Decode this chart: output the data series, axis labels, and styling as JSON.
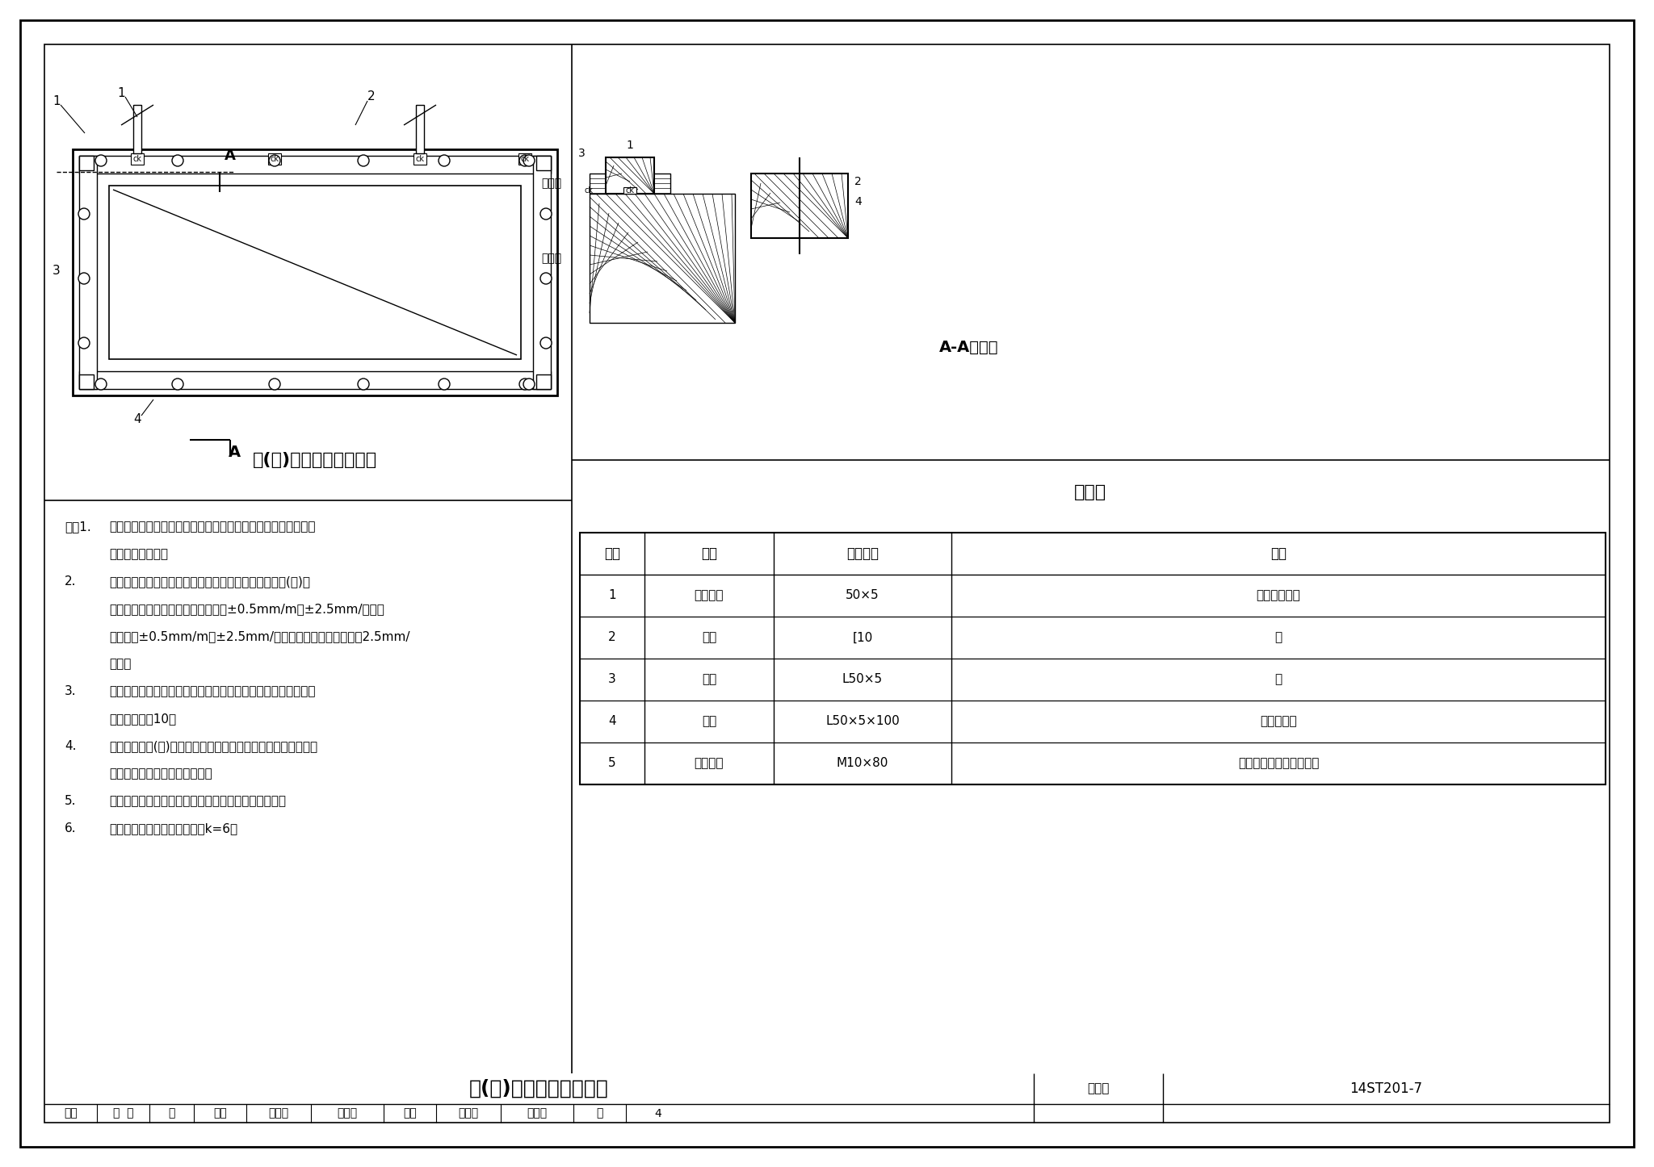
{
  "page_bg": "#ffffff",
  "title_main": "柜(屏)基础预埋件俯视图",
  "title_sub": "柜(屏)基础预埋件安装图",
  "section_title": "A-A剖面图",
  "material_title": "材料表",
  "table_headers": [
    "序号",
    "名称",
    "规格型号",
    "备注"
  ],
  "table_rows": [
    [
      "1",
      "接地扁钢",
      "50×5",
      "引至接地干线"
    ],
    [
      "2",
      "槽钢",
      "[10",
      "－"
    ],
    [
      "3",
      "角钢",
      "L50×5",
      "－"
    ],
    [
      "4",
      "角钢",
      "L50×5×100",
      "固定预埋件"
    ],
    [
      "5",
      "膨胀螺栓",
      "M10×80",
      "含垫圈、弹簧垫圈、螺母"
    ]
  ],
  "notes": [
    [
      "注：1.",
      "基础型钢应有明显的可靠接地，金属框门应以铜软线与接地的金"
    ],
    [
      "",
      "属框架可靠连接。"
    ],
    [
      "2.",
      "基础型钢应按设计图纸或设备尺寸制作，其尺寸应与柜(屏)相"
    ],
    [
      "",
      "符，允许正负偏差应符合：不直度：±0.5mm/m、±2.5mm/全长，"
    ],
    [
      "",
      "不平度：±0.5mm/m、±2.5mm/全长，位置偏差及不平度：2.5mm/"
    ],
    [
      "",
      "全长。"
    ],
    [
      "3.",
      "基础型钢安装后，其顶部标高在产品技术文件中没有要求时，宜"
    ],
    [
      "",
      "高出抹平地面10。"
    ],
    [
      "4.",
      "控制、保护柜(屏)和自动装置盘等与基础型钢不宜焊接固定，应"
    ],
    [
      "",
      "采用螺栓与预埋基础型钢固定。"
    ],
    [
      "5.",
      "基础预埋件材料清单仅供参考，具体以施工图纸为准。"
    ],
    [
      "6.",
      "焊脚尺寸设计无要求时，建议k=6。"
    ]
  ]
}
